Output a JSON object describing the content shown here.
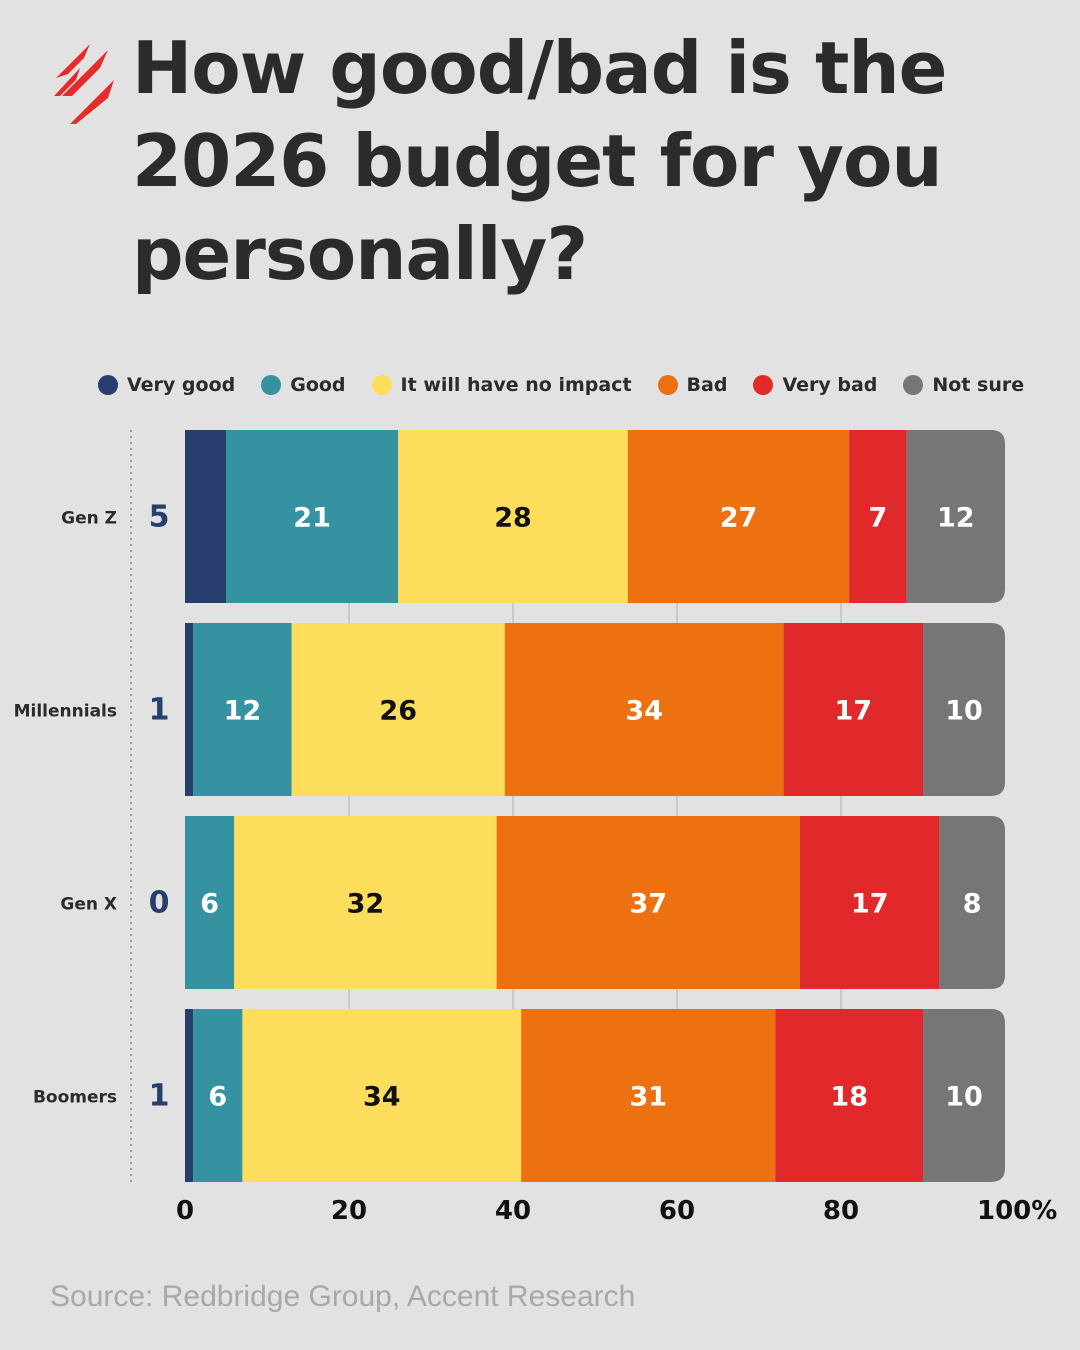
{
  "title": "How good/bad is the 2026 budget for you personally?",
  "title_lines": [
    "How good/bad is the",
    "2026 budget for you",
    "personally?"
  ],
  "logo": {
    "name": "sbs-logo",
    "color": "#e52b2b"
  },
  "source": "Source: Redbridge Group, Accent Research",
  "chart_data": {
    "type": "bar",
    "orientation": "horizontal",
    "stacked": true,
    "categories": [
      "Gen Z",
      "Millennials",
      "Gen X",
      "Boomers"
    ],
    "series": [
      {
        "name": "Very good",
        "color": "#273e6e",
        "values": [
          5,
          1,
          0,
          1
        ]
      },
      {
        "name": "Good",
        "color": "#3592a0",
        "values": [
          21,
          12,
          6,
          6
        ]
      },
      {
        "name": "It will have no impact",
        "color": "#fddd5c",
        "values": [
          28,
          26,
          32,
          34
        ]
      },
      {
        "name": "Bad",
        "color": "#ee7111",
        "values": [
          27,
          34,
          37,
          31
        ]
      },
      {
        "name": "Very bad",
        "color": "#e1282a",
        "values": [
          7,
          17,
          17,
          18
        ]
      },
      {
        "name": "Not sure",
        "color": "#767676",
        "values": [
          12,
          10,
          8,
          10
        ]
      }
    ],
    "xlim": [
      0,
      100
    ],
    "x_ticks": [
      "0",
      "20",
      "40",
      "60",
      "80",
      "100%"
    ],
    "x_tick_values": [
      0,
      20,
      40,
      60,
      80,
      100
    ],
    "grid": true,
    "legend": "top",
    "very_good_labels_outside": true
  }
}
